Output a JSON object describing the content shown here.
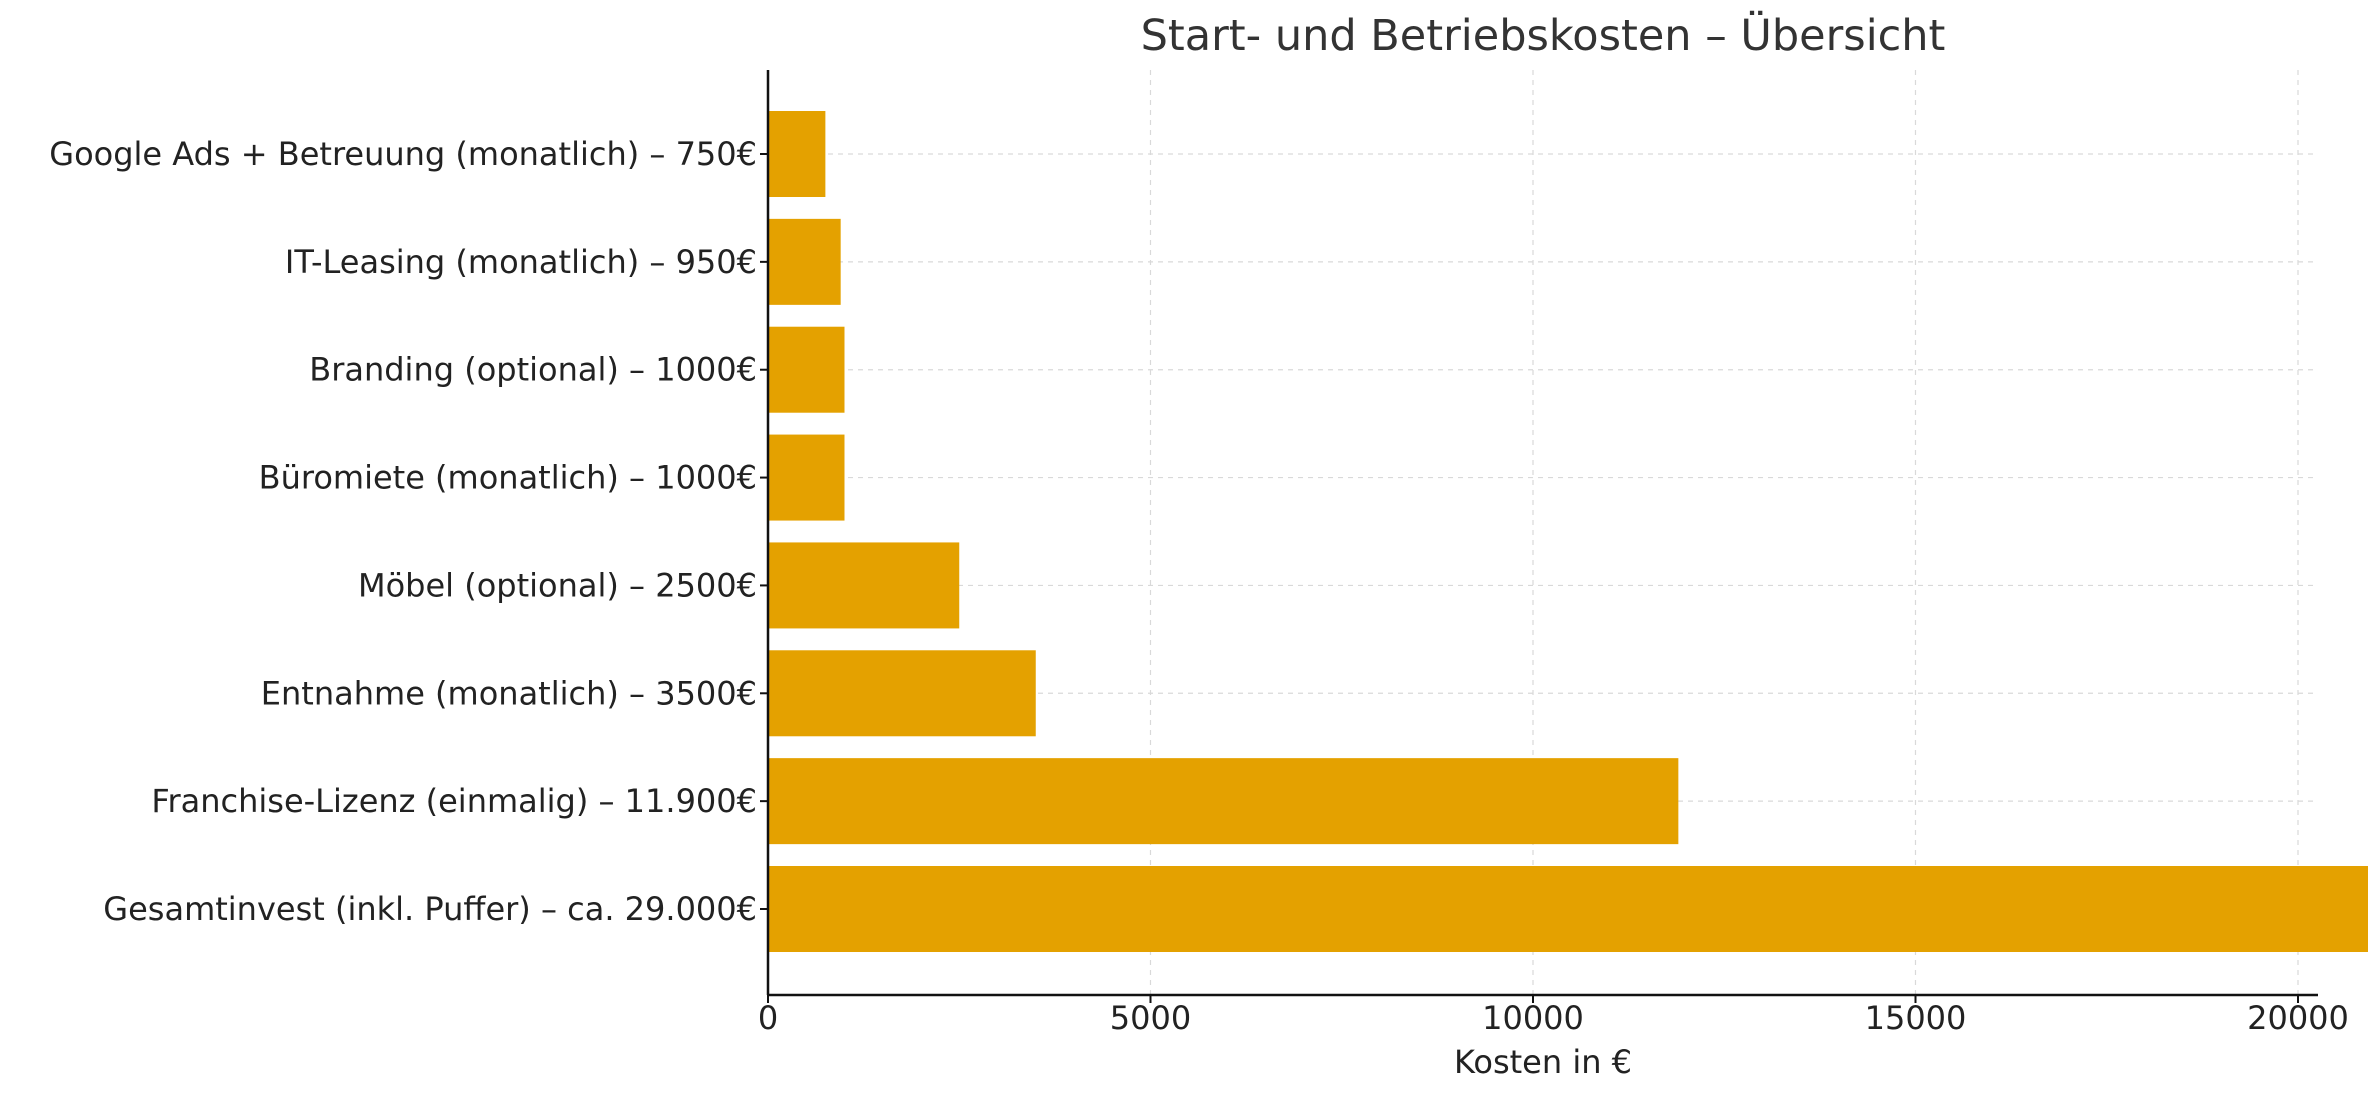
{
  "chart_data": {
    "type": "bar",
    "orientation": "horizontal",
    "title": "Start- und Betriebskosten – Übersicht",
    "xlabel": "Kosten in €",
    "ylabel": "",
    "xlim": [
      0,
      30500
    ],
    "xticks": [
      0,
      5000,
      10000,
      15000,
      20000,
      25000,
      30000
    ],
    "grid": true,
    "bar_color": "#E4A100",
    "categories": [
      "Gesamtinvest (inkl. Puffer) – ca. 29.000€",
      "Franchise-Lizenz (einmalig) – 11.900€",
      "Entnahme (monatlich) – 3500€",
      "Möbel (optional) – 2500€",
      "Büromiete (monatlich) – 1000€",
      "Branding (optional) – 1000€",
      "IT-Leasing (monatlich) – 950€",
      "Google Ads + Betreuung (monatlich) – 750€"
    ],
    "values": [
      29000,
      11900,
      3500,
      2500,
      1000,
      1000,
      950,
      750
    ]
  }
}
